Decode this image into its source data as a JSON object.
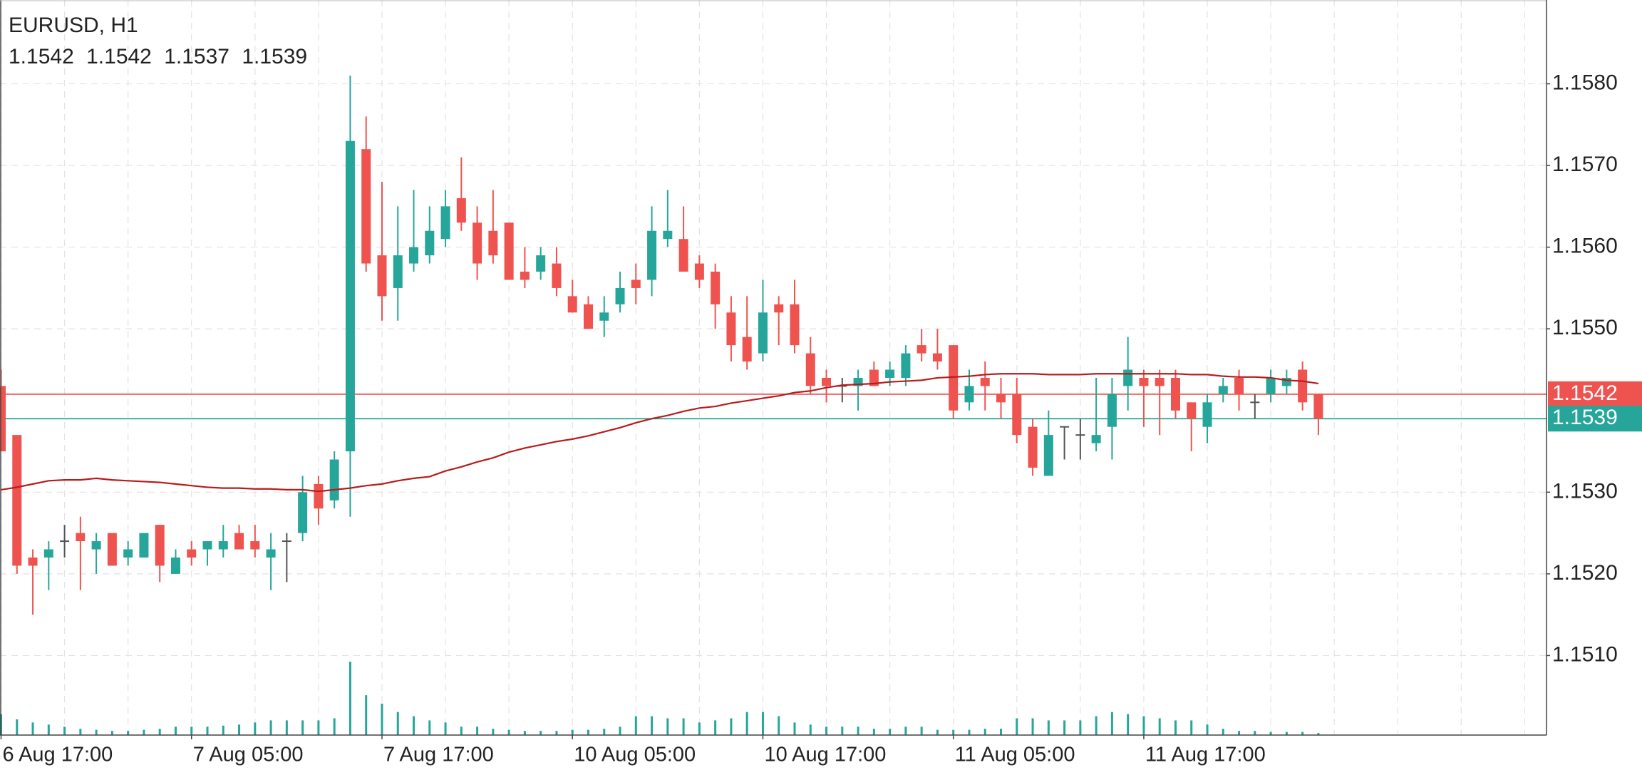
{
  "chart_data": {
    "type": "candlestick",
    "title": "EURUSD, H1",
    "categories": [
      "6 Aug 17:00",
      null,
      null,
      null,
      null,
      null,
      null,
      null,
      null,
      null,
      null,
      null,
      "7 Aug 05:00",
      null,
      null,
      null,
      null,
      null,
      null,
      null,
      null,
      null,
      null,
      null,
      "7 Aug 17:00",
      null,
      null,
      null,
      null,
      null,
      null,
      null,
      null,
      null,
      null,
      null,
      "10 Aug 05:00",
      null,
      null,
      null,
      null,
      null,
      null,
      null,
      null,
      null,
      null,
      null,
      "10 Aug 17:00",
      null,
      null,
      null,
      null,
      null,
      null,
      null,
      null,
      null,
      null,
      null,
      "11 Aug 05:00",
      null,
      null,
      null,
      null,
      null,
      null,
      null,
      null,
      null,
      null,
      null,
      "11 Aug 17:00",
      null,
      null,
      null,
      null,
      null,
      null,
      null,
      null,
      null,
      null,
      null
    ],
    "open": [
      1.1543,
      1.1537,
      1.1522,
      1.1522,
      1.1524,
      1.1525,
      1.1523,
      1.1525,
      1.1522,
      1.1522,
      1.1526,
      1.152,
      1.1523,
      1.1523,
      1.1523,
      1.1525,
      1.1524,
      1.1522,
      1.1524,
      1.1525,
      1.1531,
      1.1529,
      1.1535,
      1.1572,
      1.1559,
      1.1555,
      1.1558,
      1.1559,
      1.1561,
      1.1566,
      1.1563,
      1.1562,
      1.1563,
      1.1557,
      1.1557,
      1.1558,
      1.1554,
      1.1553,
      1.1551,
      1.1553,
      1.1556,
      1.1556,
      1.1561,
      1.1561,
      1.1558,
      1.1557,
      1.1552,
      1.1549,
      1.1547,
      1.1553,
      1.1553,
      1.1547,
      1.1544,
      1.1543,
      1.1543,
      1.1545,
      1.1544,
      1.1544,
      1.1548,
      1.1547,
      1.1548,
      1.1541,
      1.1544,
      1.1542,
      1.1542,
      1.1538,
      1.1532,
      1.1538,
      1.1537,
      1.1536,
      1.1538,
      1.1543,
      1.1544,
      1.1544,
      1.1544,
      1.1541,
      1.1538,
      1.1542,
      1.1544,
      1.1541,
      1.1542,
      1.1543,
      1.1545,
      1.1542
    ],
    "high": [
      1.1545,
      1.1537,
      1.1523,
      1.1524,
      1.1526,
      1.1527,
      1.1525,
      1.1525,
      1.1524,
      1.1525,
      1.1526,
      1.1523,
      1.1524,
      1.1524,
      1.1526,
      1.1526,
      1.1526,
      1.1525,
      1.1525,
      1.1532,
      1.1532,
      1.1535,
      1.1581,
      1.1576,
      1.1568,
      1.1565,
      1.1567,
      1.1565,
      1.1567,
      1.1571,
      1.1565,
      1.1567,
      1.1563,
      1.156,
      1.156,
      1.156,
      1.1556,
      1.1554,
      1.1554,
      1.1557,
      1.1558,
      1.1565,
      1.1567,
      1.1565,
      1.1559,
      1.1558,
      1.1554,
      1.1554,
      1.1556,
      1.1554,
      1.1556,
      1.1549,
      1.1545,
      1.1544,
      1.1545,
      1.1546,
      1.1546,
      1.1548,
      1.155,
      1.155,
      1.1548,
      1.1545,
      1.1546,
      1.1544,
      1.1544,
      1.1539,
      1.154,
      1.1538,
      1.1539,
      1.1544,
      1.1544,
      1.1549,
      1.1545,
      1.1545,
      1.1545,
      1.1541,
      1.1542,
      1.1544,
      1.1545,
      1.1542,
      1.1545,
      1.1545,
      1.1546,
      1.1542
    ],
    "low": [
      1.1535,
      1.152,
      1.1515,
      1.1518,
      1.1522,
      1.1518,
      1.152,
      1.1521,
      1.1521,
      1.1522,
      1.1519,
      1.152,
      1.1521,
      1.1521,
      1.1522,
      1.1523,
      1.1522,
      1.1518,
      1.1519,
      1.1524,
      1.1526,
      1.1528,
      1.1527,
      1.1557,
      1.1551,
      1.1551,
      1.1557,
      1.1558,
      1.156,
      1.1562,
      1.1556,
      1.1558,
      1.1556,
      1.1555,
      1.1556,
      1.1554,
      1.1552,
      1.155,
      1.1549,
      1.1552,
      1.1553,
      1.1554,
      1.156,
      1.1557,
      1.1555,
      1.155,
      1.1546,
      1.1545,
      1.1546,
      1.1548,
      1.1547,
      1.1542,
      1.1541,
      1.1541,
      1.154,
      1.1543,
      1.1543,
      1.1543,
      1.1546,
      1.1545,
      1.1539,
      1.154,
      1.154,
      1.1539,
      1.1536,
      1.1532,
      1.1532,
      1.1534,
      1.1534,
      1.1535,
      1.1534,
      1.154,
      1.1538,
      1.1537,
      1.1539,
      1.1535,
      1.1536,
      1.1541,
      1.154,
      1.1539,
      1.1541,
      1.1542,
      1.154,
      1.1537
    ],
    "close": [
      1.1535,
      1.1521,
      1.1521,
      1.1523,
      1.1524,
      1.1524,
      1.1524,
      1.1521,
      1.1523,
      1.1525,
      1.1521,
      1.1522,
      1.1522,
      1.1524,
      1.1524,
      1.1523,
      1.1523,
      1.1523,
      1.1524,
      1.153,
      1.1528,
      1.1534,
      1.1573,
      1.1558,
      1.1554,
      1.1559,
      1.156,
      1.1562,
      1.1565,
      1.1563,
      1.1558,
      1.1559,
      1.1556,
      1.1556,
      1.1559,
      1.1555,
      1.1552,
      1.155,
      1.1552,
      1.1555,
      1.1555,
      1.1562,
      1.1562,
      1.1557,
      1.1556,
      1.1553,
      1.1548,
      1.1546,
      1.1552,
      1.1552,
      1.1548,
      1.1543,
      1.1543,
      1.1543,
      1.1544,
      1.1543,
      1.1545,
      1.1547,
      1.1547,
      1.1546,
      1.154,
      1.1543,
      1.1543,
      1.1541,
      1.1537,
      1.1533,
      1.1537,
      1.1538,
      1.1537,
      1.1537,
      1.1542,
      1.1545,
      1.1543,
      1.1543,
      1.154,
      1.1539,
      1.1541,
      1.1543,
      1.1542,
      1.1541,
      1.1544,
      1.1544,
      1.1541,
      1.1539
    ],
    "up_color": "#26a69a",
    "down_color": "#ef5350",
    "doji_color": "#555555",
    "volume": [
      2000,
      1500,
      1200,
      1000,
      800,
      600,
      500,
      400,
      400,
      500,
      600,
      800,
      800,
      800,
      900,
      1000,
      1200,
      1400,
      1400,
      1400,
      1400,
      1600,
      7000,
      3800,
      3000,
      2200,
      1800,
      1400,
      1200,
      800,
      800,
      600,
      500,
      400,
      400,
      400,
      500,
      500,
      600,
      800,
      1800,
      1800,
      1600,
      1600,
      1200,
      1400,
      1600,
      2200,
      2200,
      1800,
      1200,
      1000,
      800,
      800,
      800,
      600,
      600,
      800,
      800,
      500,
      500,
      500,
      600,
      600,
      1600,
      1600,
      1400,
      1400,
      1400,
      1800,
      2200,
      2000,
      1800,
      1600,
      1400,
      1400,
      1000,
      600,
      400,
      400,
      300,
      300,
      300,
      200
    ],
    "volume_color": "#26a69a",
    "volume_ylim": [
      0,
      10000
    ],
    "ma": {
      "color": "#b71c1c",
      "values": [
        1.15303,
        1.15306,
        1.1531,
        1.15314,
        1.15315,
        1.15315,
        1.15317,
        1.15315,
        1.15314,
        1.15313,
        1.15312,
        1.1531,
        1.15308,
        1.15306,
        1.15305,
        1.15305,
        1.15304,
        1.15304,
        1.15303,
        1.15303,
        1.15301,
        1.15303,
        1.15305,
        1.15308,
        1.1531,
        1.15314,
        1.15317,
        1.15319,
        1.15326,
        1.15331,
        1.15337,
        1.15342,
        1.15349,
        1.15354,
        1.15358,
        1.15362,
        1.15365,
        1.15369,
        1.15374,
        1.15379,
        1.15385,
        1.1539,
        1.15394,
        1.15399,
        1.15403,
        1.15405,
        1.15409,
        1.15412,
        1.15415,
        1.15418,
        1.15422,
        1.15424,
        1.15428,
        1.15431,
        1.15432,
        1.15433,
        1.15435,
        1.15436,
        1.15437,
        1.1544,
        1.15441,
        1.15442,
        1.15444,
        1.15445,
        1.15445,
        1.15445,
        1.15444,
        1.15444,
        1.15444,
        1.15445,
        1.15445,
        1.15445,
        1.15445,
        1.15445,
        1.15445,
        1.15444,
        1.15444,
        1.15442,
        1.15441,
        1.15441,
        1.1544,
        1.15437,
        1.15436,
        1.15433
      ]
    },
    "price_lines": [
      {
        "value": 1.1542,
        "color": "#ef5350"
      },
      {
        "value": 1.1539,
        "color": "#26a69a"
      }
    ],
    "ylim": [
      1.15,
      1.159
    ],
    "yticks": [
      {
        "value": 1.151,
        "label": "1.1510"
      },
      {
        "value": 1.152,
        "label": "1.1520"
      },
      {
        "value": 1.153,
        "label": "1.1530"
      },
      {
        "value": 1.155,
        "label": "1.1550"
      },
      {
        "value": 1.156,
        "label": "1.1560"
      },
      {
        "value": 1.157,
        "label": "1.1570"
      },
      {
        "value": 1.158,
        "label": "1.1580"
      }
    ],
    "grid": true
  }
}
